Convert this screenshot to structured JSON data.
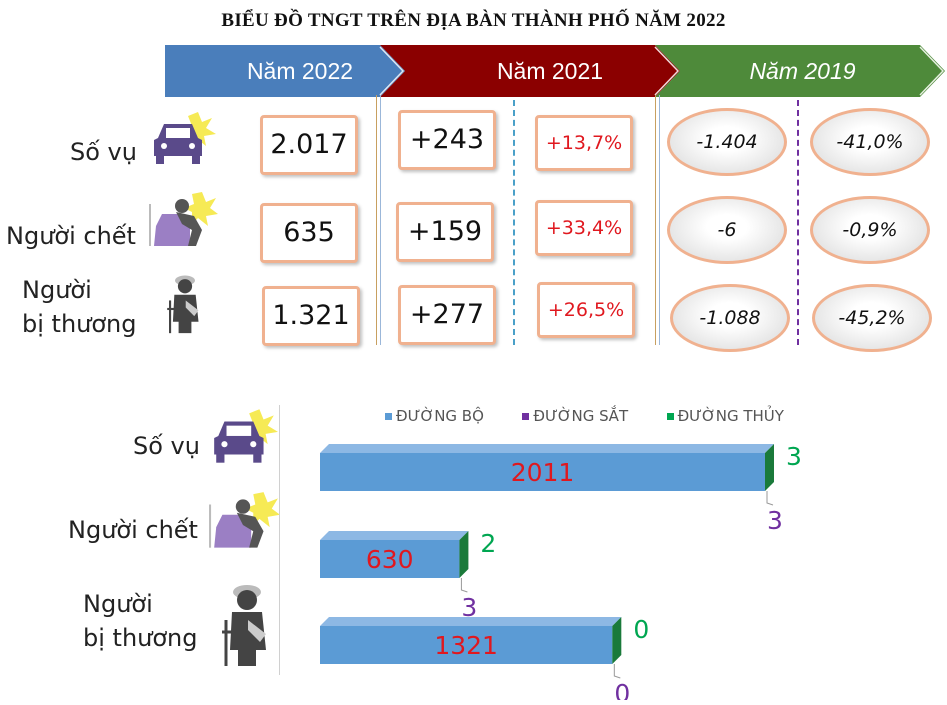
{
  "title": "BIỂU ĐỒ TNGT TRÊN ĐỊA BÀN THÀNH PHỐ NĂM 2022",
  "header": {
    "year_2022": "Năm 2022",
    "year_2021": "Năm 2021",
    "year_2019": "Năm 2019",
    "colors": {
      "year_2022": "#4a7ebb",
      "year_2021": "#8b0000",
      "year_2019": "#4e8a3a"
    }
  },
  "rows": [
    {
      "label": "Số vụ",
      "icon": "car-crash-icon",
      "value_2022": "2.017",
      "change_2021": "+243",
      "pct_2021": "+13,7%",
      "change_2019": "-1.404",
      "pct_2019": "-41,0%"
    },
    {
      "label": "Người chết",
      "icon": "person-car-crash-icon",
      "value_2022": "635",
      "change_2021": "+159",
      "pct_2021": "+33,4%",
      "change_2019": "-6",
      "pct_2019": "-0,9%"
    },
    {
      "label_line1": "Người",
      "label_line2": "bị thương",
      "icon": "injured-person-icon",
      "value_2022": "1.321",
      "change_2021": "+277",
      "pct_2021": "+26,5%",
      "change_2019": "-1.088",
      "pct_2019": "-45,2%"
    }
  ],
  "chart_data": {
    "type": "bar",
    "orientation": "horizontal",
    "stacked": true,
    "categories": [
      "Số vụ",
      "Người chết",
      "Người bị thương"
    ],
    "series": [
      {
        "name": "ĐƯỜNG BỘ",
        "values": [
          2011,
          630,
          1321
        ],
        "color": "#5b9bd5"
      },
      {
        "name": "ĐƯỜNG SẮT",
        "values": [
          3,
          3,
          0
        ],
        "color": "#7030a0"
      },
      {
        "name": "ĐƯỜNG THỦY",
        "values": [
          3,
          2,
          0
        ],
        "color": "#00a651"
      }
    ],
    "legend": "top",
    "grid": false,
    "xlim": [
      0,
      2100
    ]
  },
  "bar_labels": {
    "road": [
      "2011",
      "630",
      "1321"
    ],
    "rail": [
      "3",
      "3",
      "0"
    ],
    "water": [
      "3",
      "2",
      "0"
    ]
  }
}
